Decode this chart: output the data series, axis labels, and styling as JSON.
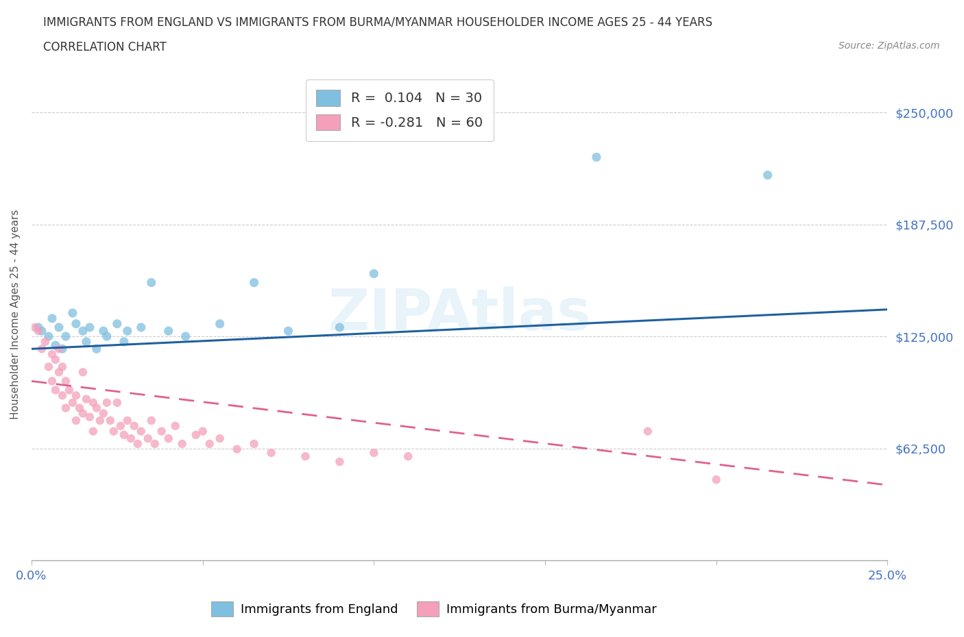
{
  "title_line1": "IMMIGRANTS FROM ENGLAND VS IMMIGRANTS FROM BURMA/MYANMAR HOUSEHOLDER INCOME AGES 25 - 44 YEARS",
  "title_line2": "CORRELATION CHART",
  "source_text": "Source: ZipAtlas.com",
  "ylabel": "Householder Income Ages 25 - 44 years",
  "xlim": [
    0.0,
    0.25
  ],
  "ylim": [
    0,
    275000
  ],
  "yticks": [
    0,
    62500,
    125000,
    187500,
    250000
  ],
  "ytick_labels": [
    "",
    "$62,500",
    "$125,000",
    "$187,500",
    "$250,000"
  ],
  "xticks": [
    0.0,
    0.05,
    0.1,
    0.15,
    0.2,
    0.25
  ],
  "xtick_labels": [
    "0.0%",
    "",
    "",
    "",
    "",
    "25.0%"
  ],
  "england_color": "#7fbfdf",
  "burma_color": "#f4a0ba",
  "england_line_color": "#2060a0",
  "burma_line_color": "#e06090",
  "legend_R_england": "R =  0.104",
  "legend_N_england": "N = 30",
  "legend_R_burma": "R = -0.281",
  "legend_N_burma": "N = 60",
  "watermark": "ZIPAtlas",
  "england_line_x0": 0.0,
  "england_line_y0": 118000,
  "england_line_x1": 0.25,
  "england_line_y1": 140000,
  "burma_line_x0": 0.0,
  "burma_line_y0": 100000,
  "burma_line_x1": 0.25,
  "burma_line_y1": 42000,
  "england_x": [
    0.002,
    0.003,
    0.005,
    0.006,
    0.007,
    0.008,
    0.009,
    0.01,
    0.012,
    0.013,
    0.015,
    0.016,
    0.017,
    0.019,
    0.021,
    0.022,
    0.025,
    0.027,
    0.028,
    0.032,
    0.035,
    0.04,
    0.045,
    0.055,
    0.065,
    0.075,
    0.09,
    0.1,
    0.165,
    0.215
  ],
  "england_y": [
    130000,
    128000,
    125000,
    135000,
    120000,
    130000,
    118000,
    125000,
    138000,
    132000,
    128000,
    122000,
    130000,
    118000,
    128000,
    125000,
    132000,
    122000,
    128000,
    130000,
    155000,
    128000,
    125000,
    132000,
    155000,
    128000,
    130000,
    160000,
    225000,
    215000
  ],
  "burma_x": [
    0.001,
    0.002,
    0.003,
    0.004,
    0.005,
    0.006,
    0.006,
    0.007,
    0.007,
    0.008,
    0.008,
    0.009,
    0.009,
    0.01,
    0.01,
    0.011,
    0.012,
    0.013,
    0.013,
    0.014,
    0.015,
    0.015,
    0.016,
    0.017,
    0.018,
    0.018,
    0.019,
    0.02,
    0.021,
    0.022,
    0.023,
    0.024,
    0.025,
    0.026,
    0.027,
    0.028,
    0.029,
    0.03,
    0.031,
    0.032,
    0.034,
    0.035,
    0.036,
    0.038,
    0.04,
    0.042,
    0.044,
    0.048,
    0.05,
    0.052,
    0.055,
    0.06,
    0.065,
    0.07,
    0.08,
    0.09,
    0.1,
    0.11,
    0.18,
    0.2
  ],
  "burma_y": [
    130000,
    128000,
    118000,
    122000,
    108000,
    115000,
    100000,
    112000,
    95000,
    118000,
    105000,
    108000,
    92000,
    100000,
    85000,
    95000,
    88000,
    92000,
    78000,
    85000,
    105000,
    82000,
    90000,
    80000,
    88000,
    72000,
    85000,
    78000,
    82000,
    88000,
    78000,
    72000,
    88000,
    75000,
    70000,
    78000,
    68000,
    75000,
    65000,
    72000,
    68000,
    78000,
    65000,
    72000,
    68000,
    75000,
    65000,
    70000,
    72000,
    65000,
    68000,
    62000,
    65000,
    60000,
    58000,
    55000,
    60000,
    58000,
    72000,
    45000
  ]
}
